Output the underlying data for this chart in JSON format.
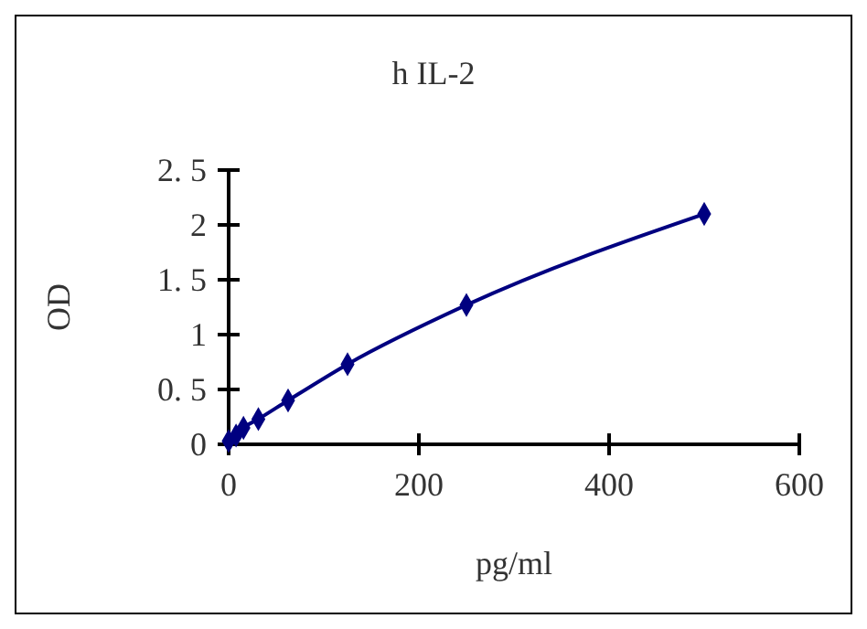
{
  "chart_data": {
    "type": "line",
    "title": "h IL-2",
    "xlabel": "pg/ml",
    "ylabel": "OD",
    "x": [
      0,
      7.8,
      15.6,
      31.25,
      62.5,
      125,
      250,
      500
    ],
    "series": [
      {
        "color": "#000080",
        "values": [
          0.03,
          0.08,
          0.15,
          0.23,
          0.4,
          0.73,
          1.27,
          2.1
        ]
      }
    ],
    "xlim": [
      0,
      600
    ],
    "xticks": [
      0,
      200,
      400,
      600
    ],
    "ylim": [
      0,
      2.5
    ],
    "yticks": [
      0,
      {
        "value": 0.5,
        "label": "0. 5"
      },
      1,
      {
        "value": 1.5,
        "label": "1. 5"
      },
      2,
      {
        "value": 2.5,
        "label": "2. 5"
      }
    ],
    "marker": "diamond"
  }
}
